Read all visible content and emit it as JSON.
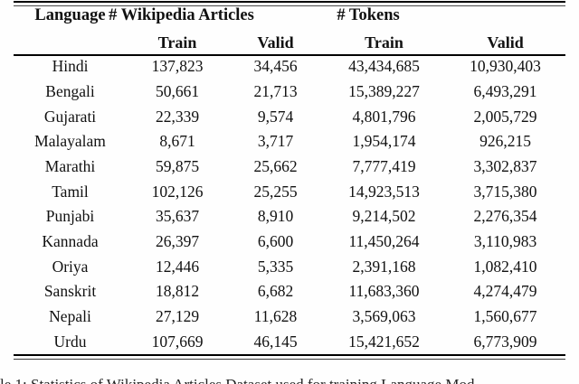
{
  "table": {
    "header": {
      "language": "Language",
      "articles_group": "# Wikipedia Articles",
      "tokens_group": "# Tokens",
      "sub": [
        "Train",
        "Valid",
        "Train",
        "Valid"
      ]
    },
    "rows": [
      [
        "Hindi",
        "137,823",
        "34,456",
        "43,434,685",
        "10,930,403"
      ],
      [
        "Bengali",
        "50,661",
        "21,713",
        "15,389,227",
        "6,493,291"
      ],
      [
        "Gujarati",
        "22,339",
        "9,574",
        "4,801,796",
        "2,005,729"
      ],
      [
        "Malayalam",
        "8,671",
        "3,717",
        "1,954,174",
        "926,215"
      ],
      [
        "Marathi",
        "59,875",
        "25,662",
        "7,777,419",
        "3,302,837"
      ],
      [
        "Tamil",
        "102,126",
        "25,255",
        "14,923,513",
        "3,715,380"
      ],
      [
        "Punjabi",
        "35,637",
        "8,910",
        "9,214,502",
        "2,276,354"
      ],
      [
        "Kannada",
        "26,397",
        "6,600",
        "11,450,264",
        "3,110,983"
      ],
      [
        "Oriya",
        "12,446",
        "5,335",
        "2,391,168",
        "1,082,410"
      ],
      [
        "Sanskrit",
        "18,812",
        "6,682",
        "11,683,360",
        "4,274,479"
      ],
      [
        "Nepali",
        "27,129",
        "11,628",
        "3,569,063",
        "1,560,677"
      ],
      [
        "Urdu",
        "107,669",
        "46,145",
        "15,421,652",
        "6,773,909"
      ]
    ]
  },
  "caption_fragment": "le 1: Statistics of Wikipedia Articles Dataset used for training Language Mod"
}
